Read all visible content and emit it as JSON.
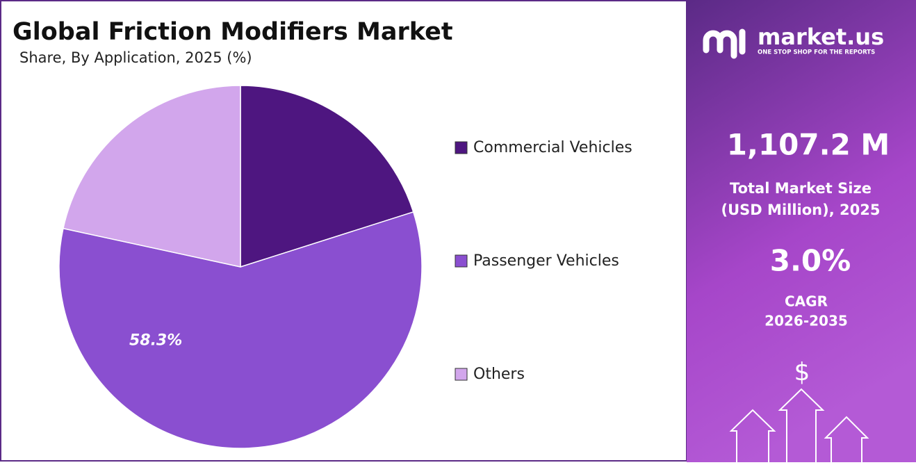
{
  "chart_data": {
    "type": "pie",
    "title": "Global Friction Modifiers Market",
    "subtitle": "Share, By Application, 2025 (%)",
    "categories": [
      "Commercial Vehicles",
      "Passenger Vehicles",
      "Others"
    ],
    "values": [
      20.1,
      58.3,
      21.6
    ],
    "value_labels": [
      null,
      "58.3%",
      null
    ],
    "colors": [
      "#4e1680",
      "#8a4fd0",
      "#d2a6ec"
    ],
    "legend": "right"
  },
  "panel": {
    "logo": "market.us",
    "tagline": "ONE STOP SHOP FOR THE REPORTS",
    "market_size": "1,107.2 M",
    "market_size_label": [
      "Total Market Size",
      "(USD Million), 2025"
    ],
    "cagr": "3.0%",
    "cagr_label": [
      "CAGR",
      "2026-2035"
    ],
    "icon": "$"
  }
}
